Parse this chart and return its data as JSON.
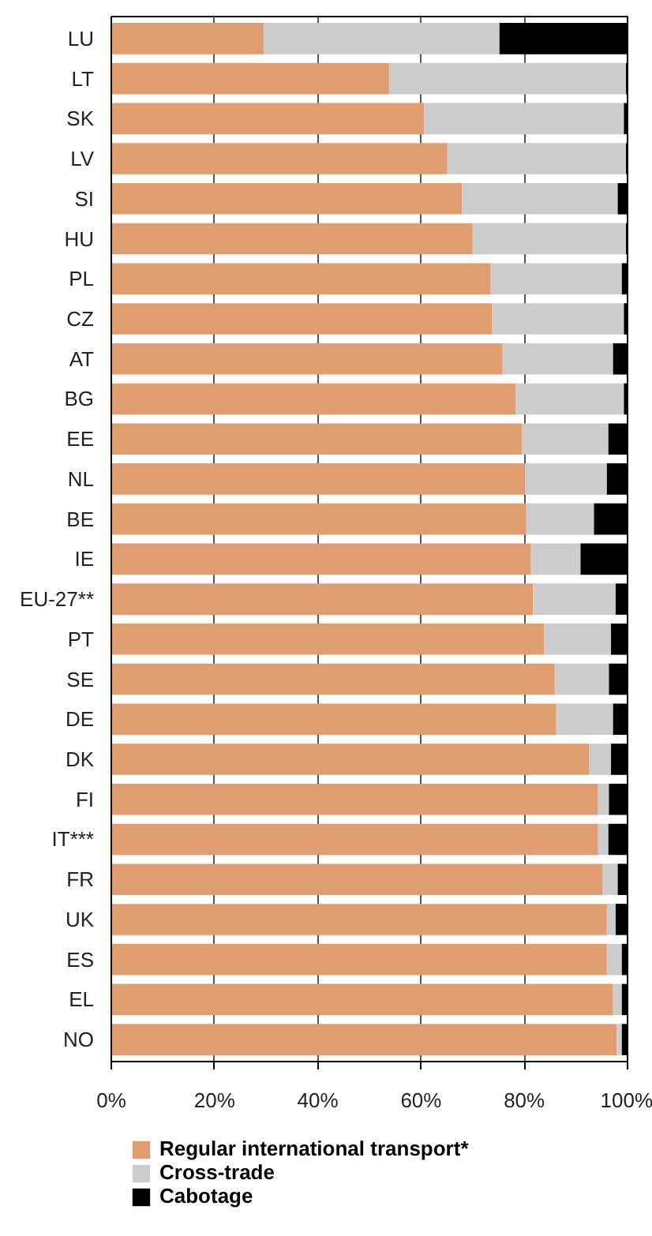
{
  "chart_data": {
    "type": "bar",
    "orientation": "horizontal",
    "stacked": true,
    "categories": [
      "LU",
      "LT",
      "SK",
      "LV",
      "SI",
      "HU",
      "PL",
      "CZ",
      "AT",
      "BG",
      "EE",
      "NL",
      "BE",
      "IE",
      "EU-27**",
      "PT",
      "SE",
      "DE",
      "DK",
      "FI",
      "IT***",
      "FR",
      "UK",
      "ES",
      "EL",
      "NO"
    ],
    "series": [
      {
        "name": "Regular international transport*",
        "color": "#e09e70",
        "values": [
          29.5,
          53.8,
          60.6,
          65.1,
          67.9,
          70.0,
          73.4,
          73.7,
          75.8,
          78.3,
          79.5,
          80.1,
          80.4,
          81.3,
          81.7,
          83.8,
          85.9,
          86.2,
          92.6,
          94.3,
          94.3,
          95.1,
          96.0,
          96.0,
          97.2,
          97.9
        ]
      },
      {
        "name": "Cross-trade",
        "color": "#cccccc",
        "values": [
          45.7,
          45.9,
          38.7,
          34.6,
          30.2,
          29.7,
          25.5,
          25.6,
          21.4,
          21.0,
          16.8,
          15.9,
          13.1,
          9.6,
          16.0,
          13.0,
          10.5,
          11.0,
          4.2,
          2.1,
          2.0,
          3.0,
          1.7,
          2.9,
          1.7,
          1.0
        ]
      },
      {
        "name": "Cabotage",
        "color": "#000000",
        "values": [
          24.8,
          0.3,
          0.7,
          0.3,
          1.9,
          0.3,
          1.1,
          0.7,
          2.8,
          0.7,
          3.7,
          4.0,
          6.5,
          9.1,
          2.3,
          3.2,
          3.6,
          2.8,
          3.2,
          3.6,
          3.7,
          1.9,
          2.3,
          1.1,
          1.1,
          1.1
        ]
      }
    ],
    "xlim": [
      0,
      100
    ],
    "xticks": [
      {
        "value": 0,
        "label": "0%"
      },
      {
        "value": 20,
        "label": "20%"
      },
      {
        "value": 40,
        "label": "40%"
      },
      {
        "value": 60,
        "label": "60%"
      },
      {
        "value": 80,
        "label": "80%"
      },
      {
        "value": 100,
        "label": "100%"
      }
    ],
    "grid": "x",
    "legend": "bottom"
  }
}
